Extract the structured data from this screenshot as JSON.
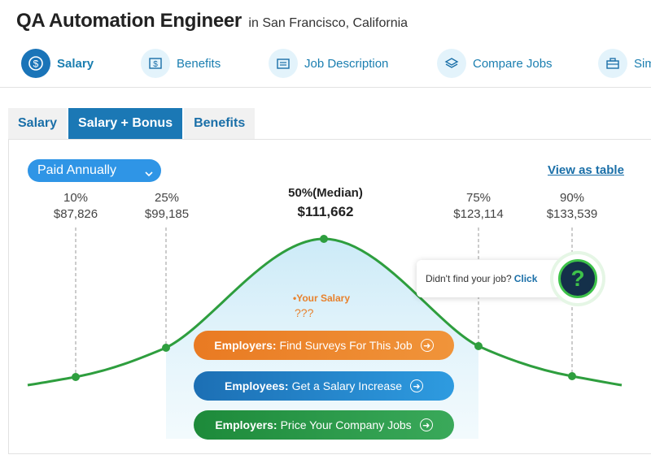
{
  "header": {
    "job_title": "QA Automation Engineer",
    "location": "in San Francisco, California"
  },
  "nav": {
    "items": [
      {
        "label": "Salary",
        "icon": "dollar-icon",
        "active": true
      },
      {
        "label": "Benefits",
        "icon": "money-icon",
        "active": false
      },
      {
        "label": "Job Description",
        "icon": "document-icon",
        "active": false
      },
      {
        "label": "Compare Jobs",
        "icon": "layers-icon",
        "active": false
      },
      {
        "label": "Sim",
        "icon": "briefcase-icon",
        "active": false
      }
    ]
  },
  "tabs": [
    {
      "label": "Salary",
      "active": false
    },
    {
      "label": "Salary + Bonus",
      "active": true
    },
    {
      "label": "Benefits",
      "active": false
    }
  ],
  "controls": {
    "paid_select": "Paid Annually",
    "view_as_table": "View as table"
  },
  "percentiles": [
    {
      "label": "10%",
      "value": "$87,826"
    },
    {
      "label": "25%",
      "value": "$99,185"
    },
    {
      "label": "50%(Median)",
      "value": "$111,662"
    },
    {
      "label": "75%",
      "value": "$123,114"
    },
    {
      "label": "90%",
      "value": "$133,539"
    }
  ],
  "your_salary": {
    "label": "Your Salary",
    "value": "???"
  },
  "cta": {
    "orange": {
      "bold": "Employers:",
      "text": "Find Surveys For This Job"
    },
    "blue": {
      "bold": "Employees:",
      "text": "Get a Salary Increase"
    },
    "green": {
      "bold": "Employers:",
      "text": "Price Your Company Jobs"
    }
  },
  "help": {
    "text": "Didn't find your job?",
    "link": "Click",
    "icon": "question-icon"
  },
  "colors": {
    "accent_blue": "#1b78b5",
    "curve_green": "#2e9e3e",
    "orange": "#e97a22"
  }
}
